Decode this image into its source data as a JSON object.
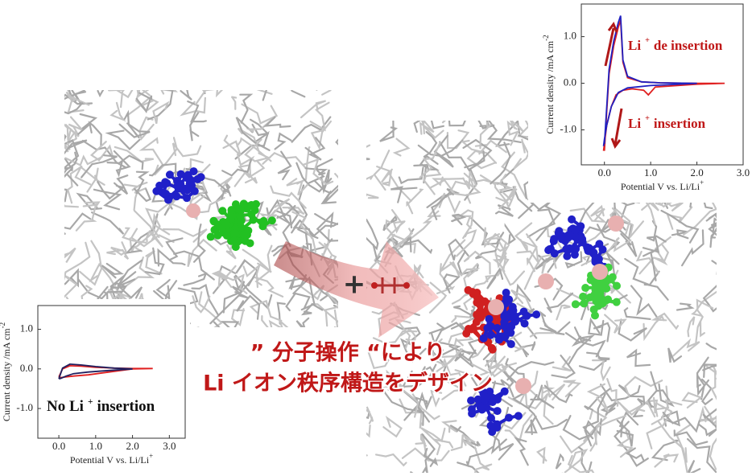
{
  "chart_data": [
    {
      "type": "line",
      "ylabel": "Current density /mA cm",
      "ylabel_sup": "-2",
      "xlabel": "Potential V vs. Li/Li",
      "xlabel_sup": "+",
      "xlim": [
        -0.5,
        3.0
      ],
      "ylim": [
        -1.75,
        1.7
      ],
      "xticks": [
        {
          "value": 0,
          "label": "0.0"
        },
        {
          "value": 1,
          "label": "1.0"
        },
        {
          "value": 2,
          "label": "2.0"
        },
        {
          "value": 3,
          "label": "3.0"
        }
      ],
      "yticks": [
        {
          "value": -1,
          "label": "-1.0"
        },
        {
          "value": 0,
          "label": "0.0"
        },
        {
          "value": 1,
          "label": "1.0"
        }
      ],
      "series": [
        {
          "color": "#e02020",
          "x": [
            0.0,
            0.05,
            0.1,
            0.2,
            0.3,
            0.35,
            0.4,
            0.5,
            0.8,
            1.2,
            2.0,
            2.6,
            2.0,
            1.1,
            0.95,
            0.85,
            0.6,
            0.4,
            0.25,
            0.15,
            0.05,
            0.0,
            -0.02
          ],
          "values": [
            -1.45,
            -0.6,
            0.2,
            0.8,
            1.2,
            1.35,
            0.45,
            0.12,
            0.03,
            0.01,
            0.0,
            0.0,
            -0.02,
            -0.08,
            -0.25,
            -0.15,
            -0.12,
            -0.15,
            -0.25,
            -0.5,
            -0.9,
            -1.3,
            -1.45
          ]
        },
        {
          "color": "#2020c0",
          "x": [
            0.0,
            0.05,
            0.1,
            0.2,
            0.3,
            0.35,
            0.4,
            0.5,
            0.8,
            1.2,
            2.0,
            1.0,
            0.5,
            0.3,
            0.15,
            0.05,
            0.0,
            -0.02
          ],
          "values": [
            -1.3,
            -0.5,
            0.3,
            0.9,
            1.3,
            1.45,
            0.5,
            0.15,
            0.03,
            0.01,
            0.0,
            -0.05,
            -0.1,
            -0.2,
            -0.5,
            -0.9,
            -1.2,
            -1.35
          ]
        }
      ],
      "annotations": [
        {
          "text": "Li",
          "sup": "+",
          "rest": "de insertion"
        },
        {
          "text": "Li",
          "sup": "+",
          "rest": "insertion"
        }
      ]
    },
    {
      "type": "line",
      "ylabel": "Current density /mA cm",
      "ylabel_sup": "-2",
      "xlabel": "Potential V vs. Li/Li",
      "xlabel_sup": "+",
      "xlim": [
        -0.57,
        3.43
      ],
      "ylim": [
        -1.75,
        1.6
      ],
      "xticks": [
        {
          "value": 0,
          "label": "0.0"
        },
        {
          "value": 1,
          "label": "1.0"
        },
        {
          "value": 2,
          "label": "2.0"
        },
        {
          "value": 3,
          "label": "3.0"
        }
      ],
      "yticks": [
        {
          "value": -1,
          "label": "-1.0"
        },
        {
          "value": 0,
          "label": "0.0"
        },
        {
          "value": 1,
          "label": "1.0"
        }
      ],
      "series": [
        {
          "color": "#e02020",
          "x": [
            0.0,
            0.1,
            0.3,
            0.6,
            1.0,
            1.5,
            2.0,
            2.55,
            2.0,
            1.2,
            0.8,
            0.4,
            0.2,
            0.05,
            0.0
          ],
          "values": [
            -0.2,
            0.0,
            0.08,
            0.07,
            0.04,
            0.02,
            0.01,
            0.01,
            0.0,
            -0.1,
            -0.15,
            -0.18,
            -0.2,
            -0.22,
            -0.2
          ]
        },
        {
          "color": "#202060",
          "x": [
            0.0,
            0.1,
            0.3,
            0.6,
            1.0,
            1.5,
            2.0,
            1.2,
            0.8,
            0.4,
            0.2,
            0.05,
            0.0
          ],
          "values": [
            -0.25,
            0.02,
            0.12,
            0.1,
            0.06,
            0.02,
            0.0,
            -0.05,
            -0.08,
            -0.12,
            -0.18,
            -0.24,
            -0.25
          ]
        }
      ],
      "annotations": [
        {
          "text": "No Li",
          "sup": "+",
          "rest": "insertion"
        }
      ]
    }
  ],
  "caption": {
    "line1": "” 分子操作 “により",
    "line2": "Li イオン秩序構造をデザイン"
  },
  "plus": "+"
}
